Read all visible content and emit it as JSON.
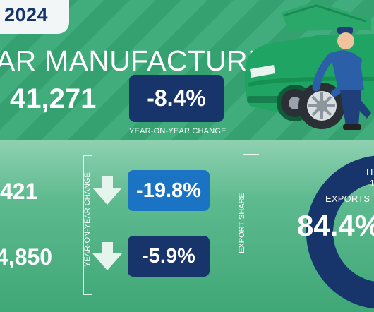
{
  "header": {
    "year": "2024",
    "title": "AR MANUFACTURING"
  },
  "headline": {
    "total": "41,271",
    "change": "-8.4%",
    "change_caption": "YEAR-ON-YEAR CHANGE"
  },
  "segments": {
    "axis_label": "YEAR-ON-YEAR CHANGE",
    "rows": [
      {
        "value": "421",
        "change": "-19.8%",
        "arrow_icon": "arrow-down-icon"
      },
      {
        "value": "4,850",
        "change": "-5.9%",
        "arrow_icon": "arrow-down-icon"
      }
    ]
  },
  "export_share": {
    "axis_label": "EXPORT SHARE",
    "exports_label": "EXPORTS",
    "exports_value": "84.4%",
    "exports_fraction": 0.844,
    "home_label_fragment": "H",
    "home_value_fragment": "1"
  },
  "colors": {
    "dark_navy": "#17356b",
    "bright_blue": "#1a73c3",
    "green": "#3aa877"
  }
}
